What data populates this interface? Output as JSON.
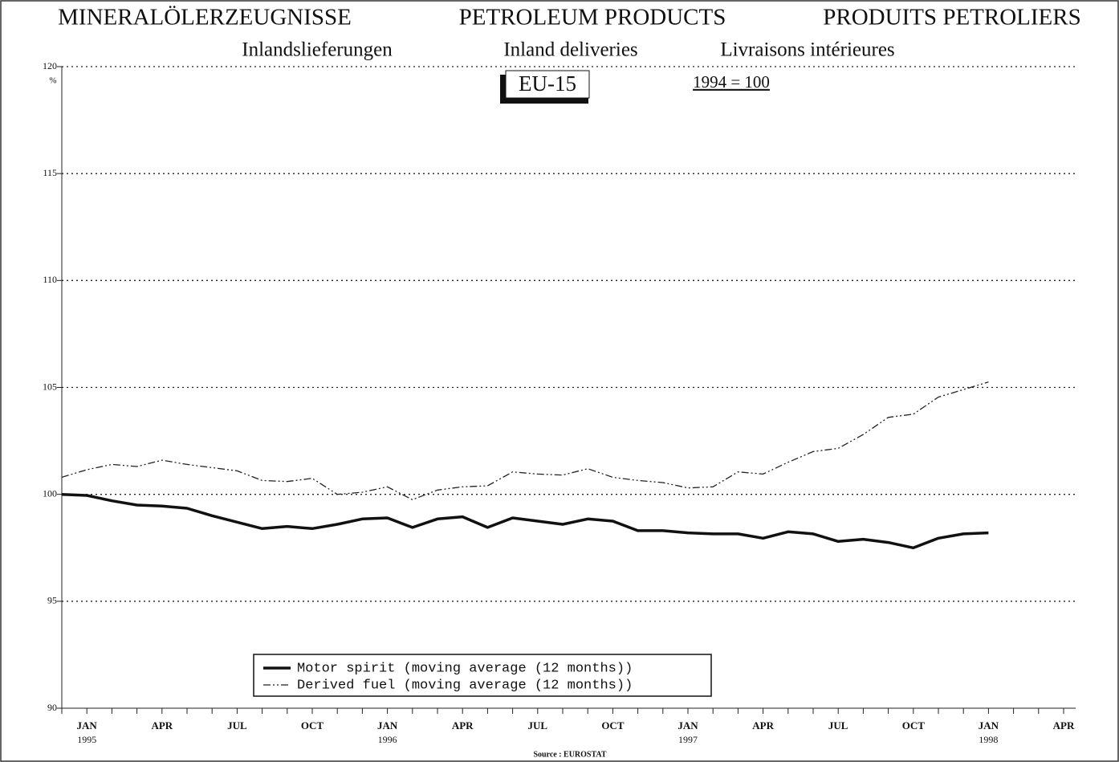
{
  "chart_data": {
    "type": "line",
    "title": [
      "MINERALÖLERZEUGNISSE",
      "PETROLEUM PRODUCTS",
      "PRODUITS PETROLIERS"
    ],
    "subtitle": [
      "Inlandslieferungen",
      "Inland deliveries",
      "Livraisons intérieures"
    ],
    "region": "EU-15",
    "base_note": "1994 = 100",
    "y_unit": "%",
    "source": "Source : EUROSTAT",
    "categories": [
      null,
      "JAN 1995",
      null,
      null,
      "APR",
      null,
      null,
      "JUL",
      null,
      null,
      "OCT",
      null,
      null,
      "JAN 1996",
      null,
      null,
      "APR",
      null,
      null,
      "JUL",
      null,
      null,
      "OCT",
      null,
      null,
      "JAN 1997",
      null,
      null,
      "APR",
      null,
      null,
      "JUL",
      null,
      null,
      "OCT",
      null,
      null,
      "JAN 1998",
      null,
      null,
      "APR"
    ],
    "series": [
      {
        "name": "Motor spirit (moving average (12 months))",
        "color": "#111111",
        "line_style": "solid",
        "values": [
          100.0,
          99.95,
          99.7,
          99.5,
          99.45,
          99.35,
          99.0,
          98.7,
          98.4,
          98.5,
          98.4,
          98.6,
          98.85,
          98.9,
          98.45,
          98.85,
          98.95,
          98.45,
          98.9,
          98.75,
          98.6,
          98.85,
          98.75,
          98.3,
          98.3,
          98.2,
          98.15,
          98.15,
          97.95,
          98.25,
          98.15,
          97.8,
          97.9,
          97.75,
          97.5,
          97.95,
          98.15,
          98.2,
          null,
          null,
          null
        ]
      },
      {
        "name": "Derived fuel (moving average (12 months))",
        "color": "#222222",
        "line_style": "dashdot",
        "values": [
          100.8,
          101.15,
          101.4,
          101.3,
          101.6,
          101.4,
          101.25,
          101.1,
          100.65,
          100.6,
          100.75,
          100.0,
          100.1,
          100.35,
          99.75,
          100.2,
          100.35,
          100.4,
          101.05,
          100.95,
          100.9,
          101.2,
          100.8,
          100.65,
          100.55,
          100.3,
          100.35,
          101.05,
          100.95,
          101.5,
          102.0,
          102.15,
          102.8,
          103.6,
          103.75,
          104.55,
          104.9,
          105.25,
          null,
          null,
          null
        ]
      }
    ],
    "ylim": [
      90,
      120
    ],
    "yticks": [
      90,
      95,
      100,
      105,
      110,
      115,
      120
    ],
    "grid": true,
    "legend": "bottom-left"
  }
}
